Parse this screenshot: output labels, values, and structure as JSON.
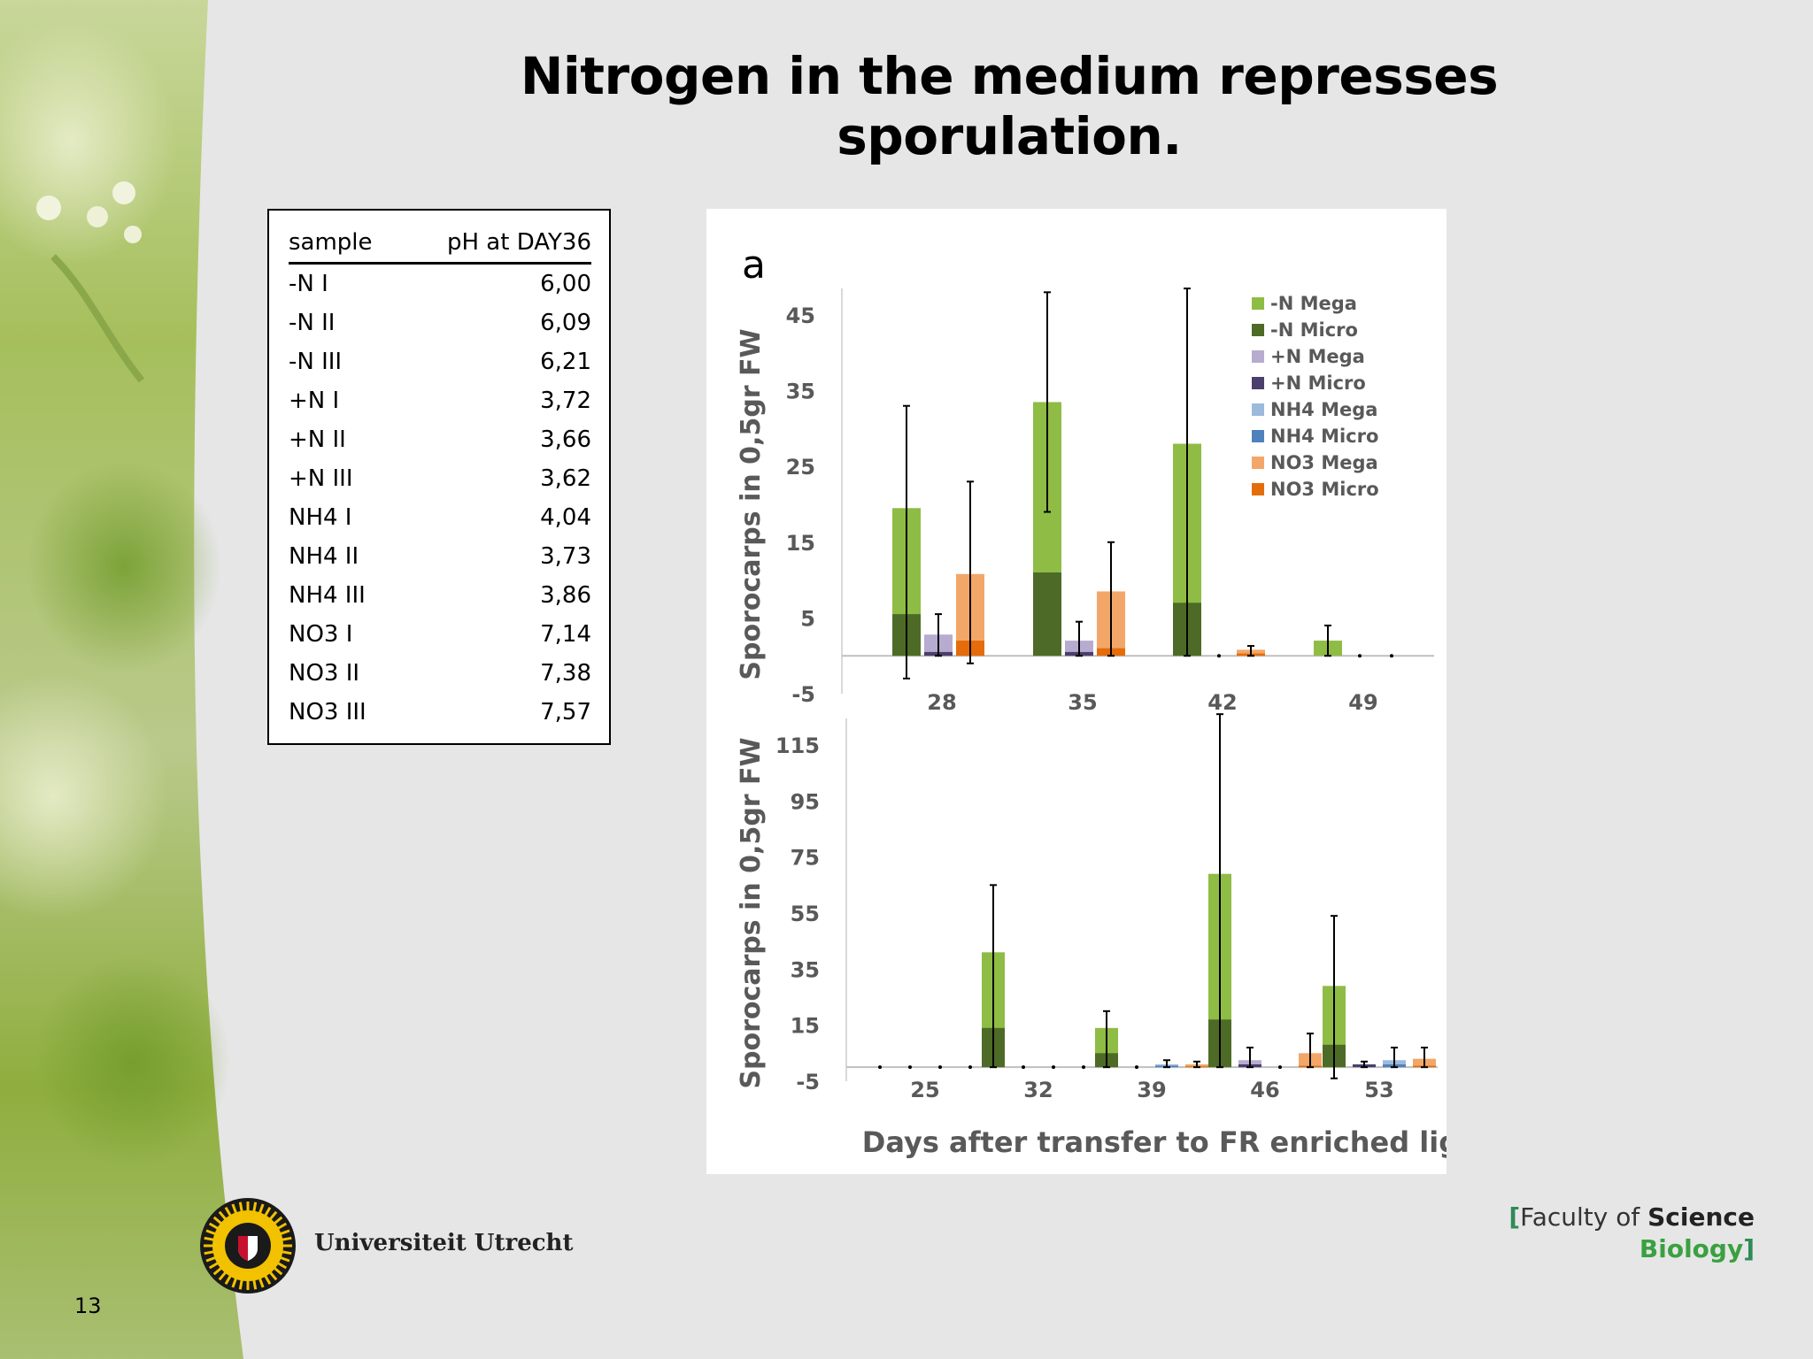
{
  "slide": {
    "title": "Nitrogen in the medium represses sporulation.",
    "page_number": "13",
    "university": "Universiteit Utrecht",
    "faculty_prefix": "Faculty of ",
    "faculty_bold": "Science",
    "department": "Biology",
    "bracket_open": "[",
    "bracket_close": "]"
  },
  "ph_table": {
    "headers": [
      "sample",
      "pH at DAY36"
    ],
    "rows": [
      [
        "-N I",
        "6,00"
      ],
      [
        "-N II",
        "6,09"
      ],
      [
        "-N III",
        "6,21"
      ],
      [
        "+N I",
        "3,72"
      ],
      [
        "+N II",
        "3,66"
      ],
      [
        "+N III",
        "3,62"
      ],
      [
        "NH4 I",
        "4,04"
      ],
      [
        "NH4 II",
        "3,73"
      ],
      [
        "NH4 III",
        "3,86"
      ],
      [
        "NO3 I",
        "7,14"
      ],
      [
        "NO3 II",
        "7,38"
      ],
      [
        "NO3 III",
        "7,57"
      ]
    ]
  },
  "colors": {
    "-N Mega": "#8fbc45",
    "-N Micro": "#4d6b26",
    "+N Mega": "#b8abd0",
    "+N Micro": "#4b3f6b",
    "NH4 Mega": "#9db9dc",
    "NH4 Micro": "#4f81bd",
    "NO3 Mega": "#f2a769",
    "NO3 Micro": "#e46c0a"
  },
  "chart_data": [
    {
      "type": "bar",
      "panel_label": "a",
      "xlabel": "",
      "ylabel": "Sporocarps in 0,5gr  FW",
      "ylim": [
        -5,
        45
      ],
      "yticks": [
        45,
        35,
        25,
        15,
        5,
        -5
      ],
      "categories": [
        "28",
        "35",
        "42",
        "49"
      ],
      "legend": [
        "-N Mega",
        "-N Micro",
        "+N Mega",
        "+N Micro",
        "NH4 Mega",
        "NH4 Micro",
        "NO3 Mega",
        "NO3 Micro"
      ],
      "legend_position": "top-right",
      "series": [
        {
          "name": "-N",
          "mega": [
            19.5,
            33.5,
            28,
            2
          ],
          "micro": [
            5.5,
            11,
            7,
            0
          ],
          "err_hi": [
            33,
            48,
            48.5,
            4
          ],
          "err_lo": [
            -3,
            19,
            0,
            0
          ]
        },
        {
          "name": "+N",
          "mega": [
            2.8,
            2,
            0,
            0
          ],
          "micro": [
            0.5,
            0.5,
            0,
            0
          ],
          "err_hi": [
            5.5,
            4.5,
            0,
            0
          ],
          "err_lo": [
            0,
            0,
            0,
            0
          ]
        },
        {
          "name": "NO3",
          "mega": [
            10.8,
            8.5,
            0.8,
            0
          ],
          "micro": [
            2,
            1,
            0.3,
            0
          ],
          "err_hi": [
            23,
            15,
            1.3,
            0
          ],
          "err_lo": [
            -1,
            0,
            0,
            0
          ]
        }
      ]
    },
    {
      "type": "bar",
      "panel_label": "",
      "xlabel": "Days after transfer to FR enriched light",
      "ylabel": "Sporocarps in 0,5gr  FW",
      "ylim": [
        -5,
        115
      ],
      "yticks": [
        115,
        95,
        75,
        55,
        35,
        15,
        -5
      ],
      "categories": [
        "25",
        "32",
        "39",
        "46",
        "53"
      ],
      "series": [
        {
          "name": "-N",
          "mega": [
            0,
            41,
            14,
            69,
            29
          ],
          "micro": [
            0,
            14,
            5,
            17,
            8
          ],
          "err_hi": [
            0,
            65,
            20,
            126,
            54
          ],
          "err_lo": [
            0,
            0,
            0,
            0,
            -4
          ]
        },
        {
          "name": "+N",
          "mega": [
            0,
            0,
            0,
            2.5,
            0
          ],
          "micro": [
            0,
            0,
            0,
            1,
            1
          ],
          "err_hi": [
            0,
            0,
            0,
            7,
            2
          ],
          "err_lo": [
            0,
            0,
            0,
            0,
            0
          ]
        },
        {
          "name": "NH4",
          "mega": [
            0,
            0,
            1,
            0,
            2.5
          ],
          "micro": [
            0,
            0,
            0.5,
            0,
            1
          ],
          "err_hi": [
            0,
            0,
            2.5,
            0,
            7
          ],
          "err_lo": [
            0,
            0,
            0,
            0,
            0
          ]
        },
        {
          "name": "NO3",
          "mega": [
            0,
            0,
            1,
            5,
            3
          ],
          "micro": [
            0,
            0,
            0.3,
            0.5,
            0.5
          ],
          "err_hi": [
            0,
            0,
            2,
            12,
            7
          ],
          "err_lo": [
            0,
            0,
            0,
            0,
            0
          ]
        }
      ]
    }
  ]
}
